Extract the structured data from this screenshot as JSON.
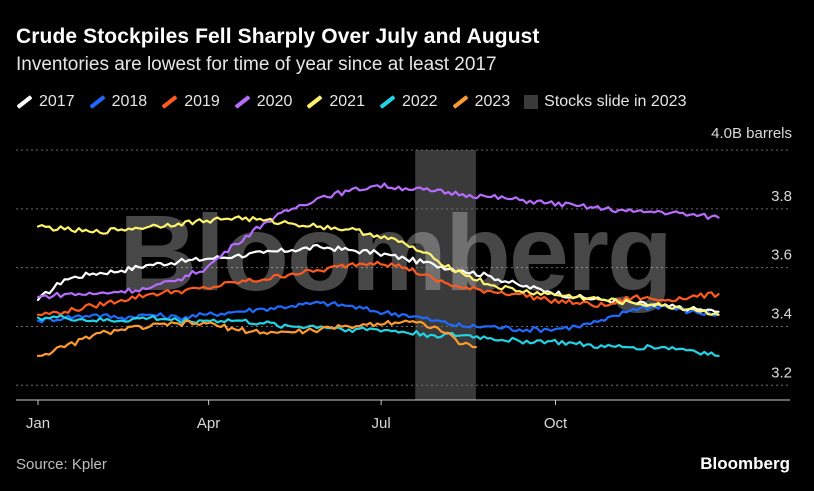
{
  "title": "Crude Stockpiles Fell Sharply Over July and August",
  "subtitle": "Inventories are lowest for time of year since at least 2017",
  "legend": [
    {
      "label": "2017",
      "color": "#ffffff"
    },
    {
      "label": "2018",
      "color": "#1f6bff"
    },
    {
      "label": "2019",
      "color": "#ff5a1f"
    },
    {
      "label": "2020",
      "color": "#b66dff"
    },
    {
      "label": "2021",
      "color": "#fff36b"
    },
    {
      "label": "2022",
      "color": "#22d3e6"
    },
    {
      "label": "2023",
      "color": "#ff9a2e"
    }
  ],
  "shade_label": "Stocks slide in 2023",
  "source": "Source: Kpler",
  "brand": "Bloomberg",
  "watermark": "Bloomberg",
  "chart_data": {
    "type": "line",
    "y_unit_label": "4.0B barrels",
    "ylim": [
      3.15,
      4.0
    ],
    "y_ticks": [
      3.2,
      3.4,
      3.6,
      3.8
    ],
    "y_tick_labels": [
      "3.2",
      "3.4",
      "3.6",
      "3.8"
    ],
    "xlim": [
      1,
      365
    ],
    "x_ticks": [
      1,
      91,
      182,
      274
    ],
    "x_tick_labels": [
      "Jan",
      "Apr",
      "Jul",
      "Oct"
    ],
    "shaded_range": [
      200,
      232
    ],
    "grid": true,
    "series": [
      {
        "name": "2017",
        "color": "#ffffff",
        "x": [
          1,
          15,
          30,
          45,
          60,
          75,
          90,
          105,
          120,
          135,
          150,
          165,
          180,
          195,
          210,
          225,
          240,
          255,
          270,
          285,
          300,
          315,
          330,
          345,
          360
        ],
        "y": [
          3.49,
          3.56,
          3.58,
          3.59,
          3.61,
          3.62,
          3.63,
          3.64,
          3.65,
          3.66,
          3.67,
          3.66,
          3.65,
          3.63,
          3.61,
          3.59,
          3.57,
          3.54,
          3.52,
          3.5,
          3.49,
          3.48,
          3.47,
          3.46,
          3.45
        ]
      },
      {
        "name": "2018",
        "color": "#1f6bff",
        "x": [
          1,
          15,
          30,
          45,
          60,
          75,
          90,
          105,
          120,
          135,
          150,
          165,
          180,
          195,
          210,
          225,
          240,
          255,
          270,
          285,
          300,
          315,
          330,
          345,
          360
        ],
        "y": [
          3.42,
          3.43,
          3.44,
          3.43,
          3.44,
          3.43,
          3.44,
          3.45,
          3.46,
          3.47,
          3.48,
          3.47,
          3.45,
          3.44,
          3.42,
          3.4,
          3.4,
          3.39,
          3.39,
          3.4,
          3.42,
          3.46,
          3.47,
          3.45,
          3.44
        ]
      },
      {
        "name": "2019",
        "color": "#ff5a1f",
        "x": [
          1,
          15,
          30,
          45,
          60,
          75,
          90,
          105,
          120,
          135,
          150,
          165,
          180,
          195,
          210,
          225,
          240,
          255,
          270,
          285,
          300,
          315,
          330,
          345,
          360
        ],
        "y": [
          3.44,
          3.45,
          3.47,
          3.49,
          3.51,
          3.52,
          3.53,
          3.55,
          3.56,
          3.58,
          3.59,
          3.61,
          3.62,
          3.6,
          3.56,
          3.53,
          3.52,
          3.51,
          3.49,
          3.48,
          3.47,
          3.5,
          3.49,
          3.5,
          3.51
        ]
      },
      {
        "name": "2020",
        "color": "#b66dff",
        "x": [
          1,
          15,
          30,
          45,
          60,
          75,
          90,
          105,
          120,
          135,
          150,
          165,
          180,
          195,
          210,
          225,
          240,
          255,
          270,
          285,
          300,
          315,
          330,
          345,
          360
        ],
        "y": [
          3.5,
          3.51,
          3.51,
          3.52,
          3.53,
          3.56,
          3.6,
          3.68,
          3.75,
          3.8,
          3.84,
          3.86,
          3.88,
          3.87,
          3.86,
          3.85,
          3.84,
          3.83,
          3.82,
          3.81,
          3.8,
          3.79,
          3.79,
          3.78,
          3.77
        ]
      },
      {
        "name": "2021",
        "color": "#fff36b",
        "x": [
          1,
          15,
          30,
          45,
          60,
          75,
          90,
          105,
          120,
          135,
          150,
          165,
          180,
          195,
          210,
          225,
          240,
          255,
          270,
          285,
          300,
          315,
          330,
          345,
          360
        ],
        "y": [
          3.74,
          3.73,
          3.72,
          3.73,
          3.74,
          3.75,
          3.76,
          3.77,
          3.76,
          3.75,
          3.74,
          3.73,
          3.71,
          3.68,
          3.63,
          3.58,
          3.54,
          3.52,
          3.51,
          3.5,
          3.49,
          3.48,
          3.47,
          3.46,
          3.44
        ]
      },
      {
        "name": "2022",
        "color": "#22d3e6",
        "x": [
          1,
          15,
          30,
          45,
          60,
          75,
          90,
          105,
          120,
          135,
          150,
          165,
          180,
          195,
          210,
          225,
          240,
          255,
          270,
          285,
          300,
          315,
          330,
          345,
          360
        ],
        "y": [
          3.43,
          3.43,
          3.42,
          3.42,
          3.43,
          3.42,
          3.42,
          3.42,
          3.41,
          3.4,
          3.4,
          3.39,
          3.39,
          3.38,
          3.37,
          3.37,
          3.36,
          3.35,
          3.35,
          3.34,
          3.33,
          3.33,
          3.33,
          3.32,
          3.3
        ]
      },
      {
        "name": "2023",
        "color": "#ff9a2e",
        "x": [
          1,
          15,
          30,
          45,
          60,
          75,
          90,
          105,
          120,
          135,
          150,
          165,
          180,
          195,
          210,
          225,
          232
        ],
        "y": [
          3.3,
          3.33,
          3.37,
          3.39,
          3.4,
          3.41,
          3.41,
          3.39,
          3.38,
          3.38,
          3.39,
          3.4,
          3.41,
          3.42,
          3.4,
          3.34,
          3.33
        ]
      }
    ]
  }
}
